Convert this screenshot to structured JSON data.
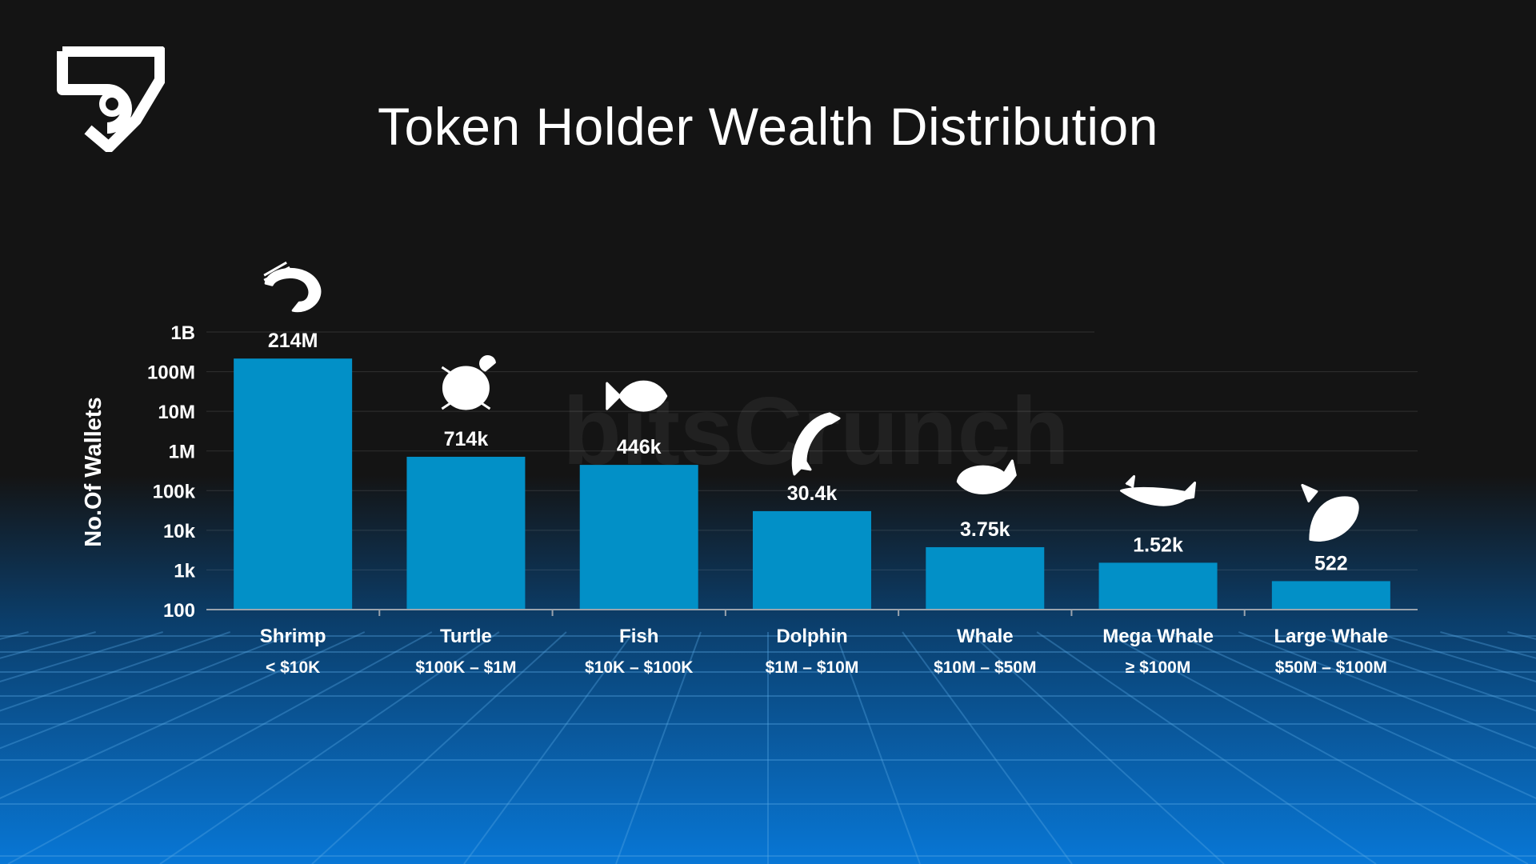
{
  "header": {
    "title": "Token Holder Wealth Distribution",
    "logo_icon": "bitscrunch-logo-icon"
  },
  "watermark": {
    "text": "bitsCrunch"
  },
  "colors": {
    "bar": "#0290c7",
    "background": "#141414",
    "grid_floor": "#0a6fd1"
  },
  "chart_data": {
    "type": "bar",
    "title": "Token Holder Wealth Distribution",
    "ylabel": "No.Of Wallets",
    "xlabel": "",
    "yscale": "log",
    "ylim": [
      100,
      1000000000
    ],
    "yticks": [
      100,
      1000,
      10000,
      100000,
      1000000,
      10000000,
      100000000,
      1000000000
    ],
    "yticklabels": [
      "100",
      "1k",
      "10k",
      "100k",
      "1M",
      "10M",
      "100M",
      "1B"
    ],
    "categories": [
      "Shrimp",
      "Turtle",
      "Fish",
      "Dolphin",
      "Whale",
      "Mega  Whale",
      "Large Whale"
    ],
    "ranges": [
      "< $10K",
      "$100K – $1M",
      "$10K – $100K",
      "$1M – $10M",
      "$10M – $50M",
      "≥ $100M",
      "$50M – $100M"
    ],
    "values": [
      214000000,
      714000,
      446000,
      30400,
      3750,
      1520,
      522
    ],
    "value_labels": [
      "214M",
      "714k",
      "446k",
      "30.4k",
      "3.75k",
      "1.52k",
      "522"
    ],
    "icons": [
      "shrimp-icon",
      "turtle-icon",
      "fish-icon",
      "dolphin-icon",
      "whale-icon",
      "humpback-whale-icon",
      "blue-whale-icon"
    ],
    "grid": true,
    "legend": "none"
  }
}
